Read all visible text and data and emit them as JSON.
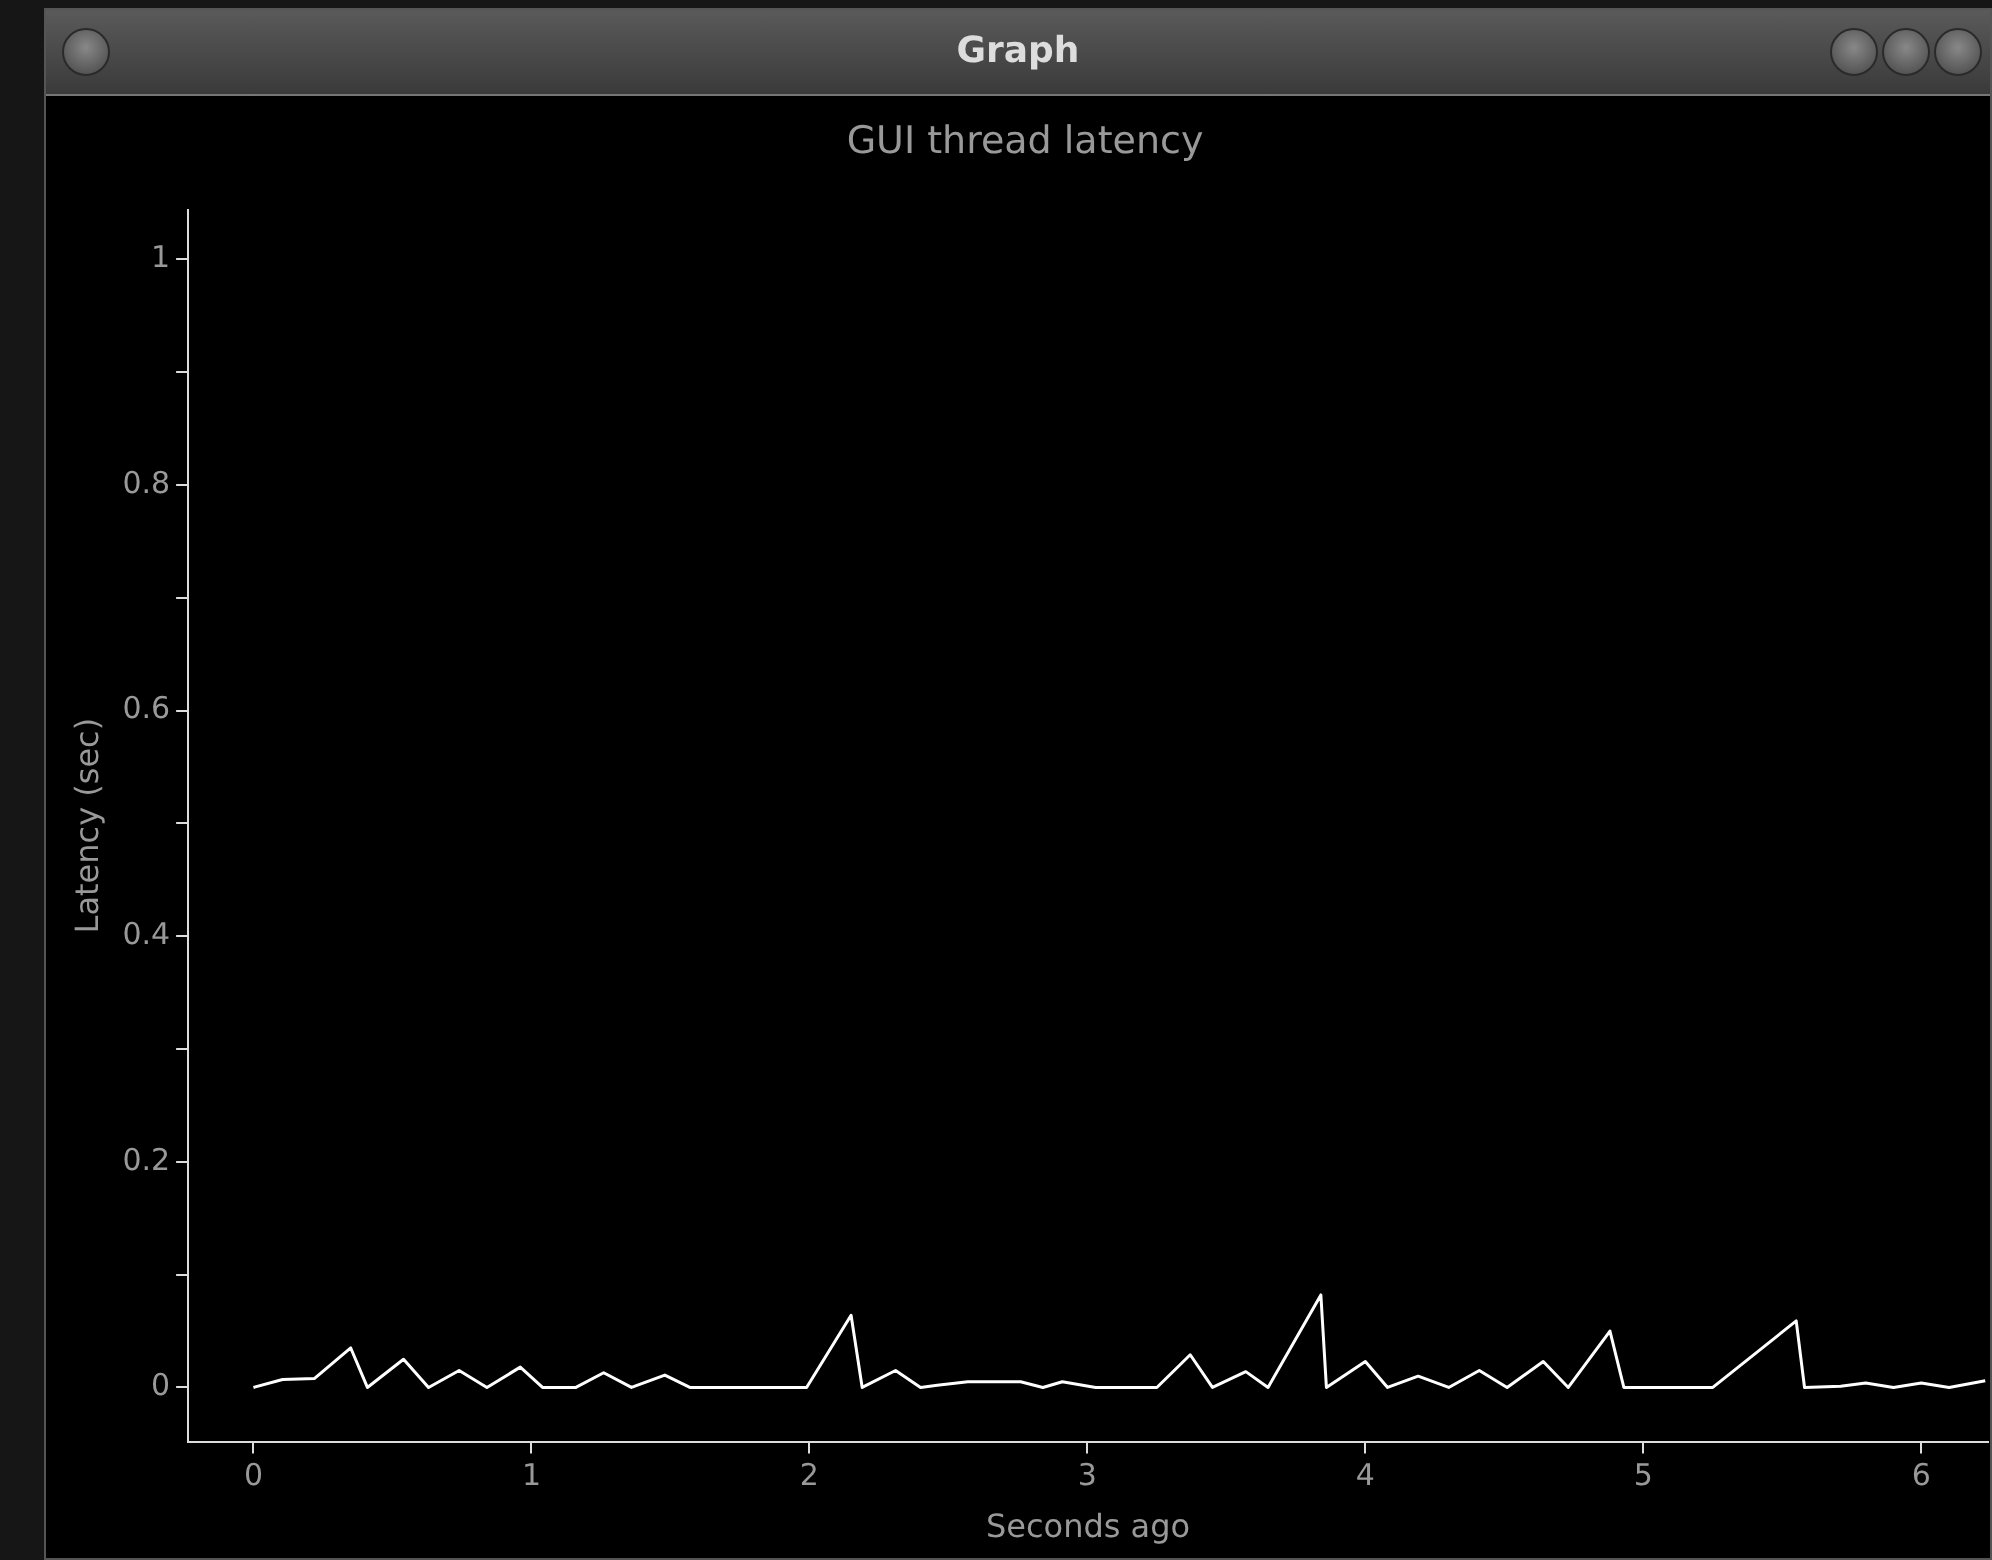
{
  "chart_data": {
    "type": "line",
    "title": "GUI thread latency",
    "xlabel": "Seconds ago",
    "ylabel": "Latency (sec)",
    "annotations": [
      "Graph"
    ],
    "series": [
      {
        "color": "#ffffff",
        "x": [
          0,
          0.105,
          0.22,
          0.35,
          0.41,
          0.54,
          0.63,
          0.74,
          0.84,
          0.96,
          1.04,
          1.16,
          1.26,
          1.36,
          1.48,
          1.57,
          1.99,
          2.15,
          2.19,
          2.31,
          2.4,
          2.46,
          2.57,
          2.76,
          2.84,
          2.91,
          3.03,
          3.25,
          3.37,
          3.45,
          3.57,
          3.65,
          3.84,
          3.86,
          4.0,
          4.08,
          4.19,
          4.3,
          4.41,
          4.51,
          4.64,
          4.73,
          4.88,
          4.93,
          5.25,
          5.55,
          5.58,
          5.71,
          5.8,
          5.9,
          6.0,
          6.1,
          6.23
        ],
        "values": [
          0,
          0.007,
          0.008,
          0.035,
          0,
          0.025,
          0,
          0.015,
          0,
          0.018,
          0,
          0,
          0.013,
          0,
          0.011,
          0,
          0,
          0.064,
          0,
          0.015,
          0,
          0.002,
          0.005,
          0.005,
          0,
          0.005,
          0,
          0,
          0.029,
          0,
          0.014,
          0,
          0.082,
          0,
          0.023,
          0,
          0.01,
          0,
          0.015,
          0,
          0.023,
          0,
          0.05,
          0,
          0,
          0.059,
          0,
          0.001,
          0.004,
          0,
          0.004,
          0,
          0.006
        ]
      }
    ],
    "xlim": [
      -0.235,
      6.24
    ],
    "xticks": [
      0,
      1,
      2,
      3,
      4,
      5,
      6
    ],
    "ylim": [
      -0.048,
      1.044
    ],
    "yticks": [
      0,
      {
        "value": 0.1,
        "label": null
      },
      0.2,
      {
        "value": 0.3,
        "label": null
      },
      0.4,
      {
        "value": 0.5,
        "label": null
      },
      0.6,
      {
        "value": 0.7,
        "label": null
      },
      0.8,
      {
        "value": 0.9,
        "label": null
      },
      1
    ],
    "legend": false,
    "marker": "none",
    "line_style": "solid"
  }
}
